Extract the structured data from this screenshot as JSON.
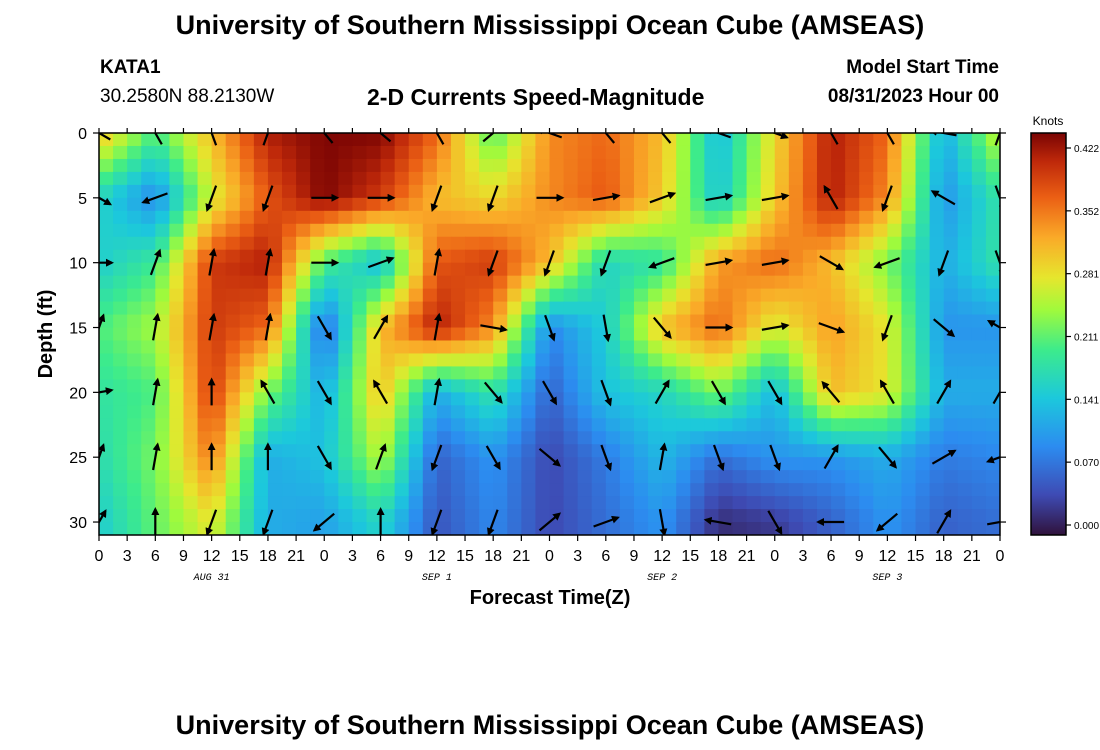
{
  "header": {
    "title": "University of Southern Mississippi Ocean Cube (AMSEAS)",
    "station_id": "KATA1",
    "coordinates": "30.2580N  88.2130W",
    "subtitle": "2-D Currents Speed-Magnitude",
    "model_start_label": "Model Start Time",
    "model_start_value": "08/31/2023 Hour 00"
  },
  "footer": {
    "title": "University of Southern Mississippi Ocean Cube (AMSEAS)"
  },
  "chart_data": {
    "type": "heatmap",
    "title": "2-D Currents Speed-Magnitude",
    "xlabel": "Forecast Time(Z)",
    "ylabel": "Depth (ft)",
    "x_tick_labels": [
      "0",
      "3",
      "6",
      "9",
      "12",
      "15",
      "18",
      "21",
      "0",
      "3",
      "6",
      "9",
      "12",
      "15",
      "18",
      "21",
      "0",
      "3",
      "6",
      "9",
      "12",
      "15",
      "18",
      "21",
      "0",
      "3",
      "6",
      "9",
      "12",
      "15",
      "18",
      "21",
      "0"
    ],
    "x_hours_range": [
      0,
      96
    ],
    "date_labels": [
      {
        "hour": 12,
        "text": "AUG 31"
      },
      {
        "hour": 36,
        "text": "SEP 1"
      },
      {
        "hour": 60,
        "text": "SEP 2"
      },
      {
        "hour": 84,
        "text": "SEP 3"
      }
    ],
    "y_ticks": [
      0,
      5,
      10,
      15,
      20,
      25,
      30
    ],
    "ylim": [
      0,
      31
    ],
    "y_inverted": true,
    "colorbar": {
      "label": "Knots",
      "ticks": [
        "0.422",
        "0.352",
        "0.281",
        "0.211",
        "0.141",
        "0.070",
        "0.000"
      ],
      "range": [
        0,
        0.422
      ]
    },
    "depth_rows_ft": [
      0,
      5,
      10,
      15,
      20,
      25,
      30
    ],
    "time_cols_hours": [
      0,
      6,
      12,
      18,
      24,
      30,
      36,
      42,
      48,
      54,
      60,
      66,
      72,
      78,
      84,
      90,
      96
    ],
    "speed_knots": [
      [
        0.3,
        0.2,
        0.3,
        0.4,
        0.42,
        0.42,
        0.35,
        0.2,
        0.33,
        0.35,
        0.3,
        0.13,
        0.28,
        0.4,
        0.35,
        0.12,
        0.26
      ],
      [
        0.16,
        0.09,
        0.26,
        0.36,
        0.42,
        0.38,
        0.3,
        0.28,
        0.33,
        0.36,
        0.29,
        0.14,
        0.29,
        0.4,
        0.33,
        0.1,
        0.18
      ],
      [
        0.15,
        0.19,
        0.38,
        0.4,
        0.2,
        0.13,
        0.36,
        0.38,
        0.3,
        0.16,
        0.18,
        0.32,
        0.35,
        0.3,
        0.22,
        0.12,
        0.18
      ],
      [
        0.2,
        0.24,
        0.38,
        0.35,
        0.06,
        0.3,
        0.4,
        0.33,
        0.09,
        0.15,
        0.3,
        0.35,
        0.26,
        0.32,
        0.27,
        0.1,
        0.1
      ],
      [
        0.18,
        0.2,
        0.38,
        0.22,
        0.12,
        0.3,
        0.12,
        0.18,
        0.06,
        0.14,
        0.16,
        0.22,
        0.13,
        0.3,
        0.27,
        0.12,
        0.12
      ],
      [
        0.17,
        0.22,
        0.34,
        0.12,
        0.14,
        0.25,
        0.06,
        0.1,
        0.04,
        0.08,
        0.13,
        0.07,
        0.1,
        0.1,
        0.12,
        0.08,
        0.09
      ],
      [
        0.15,
        0.21,
        0.27,
        0.12,
        0.11,
        0.16,
        0.05,
        0.09,
        0.04,
        0.07,
        0.1,
        0.02,
        0.03,
        0.06,
        0.1,
        0.06,
        0.07
      ]
    ],
    "current_vectors_deg": [
      [
        300,
        330,
        340,
        20,
        320,
        310,
        330,
        50,
        290,
        320,
        320,
        290,
        110,
        330,
        330,
        280,
        20
      ],
      [
        120,
        250,
        200,
        200,
        90,
        90,
        200,
        200,
        90,
        80,
        70,
        80,
        80,
        330,
        200,
        300,
        160
      ],
      [
        90,
        20,
        10,
        10,
        90,
        70,
        10,
        200,
        200,
        200,
        250,
        80,
        80,
        120,
        250,
        200,
        160
      ],
      [
        20,
        10,
        10,
        10,
        150,
        30,
        10,
        100,
        160,
        170,
        140,
        90,
        80,
        110,
        200,
        130,
        300
      ],
      [
        80,
        10,
        0,
        330,
        150,
        330,
        10,
        140,
        150,
        160,
        30,
        150,
        150,
        320,
        330,
        30,
        30
      ],
      [
        20,
        10,
        0,
        0,
        150,
        20,
        200,
        150,
        130,
        160,
        10,
        160,
        160,
        30,
        140,
        60,
        250
      ],
      [
        30,
        0,
        200,
        200,
        230,
        0,
        200,
        200,
        50,
        70,
        170,
        280,
        150,
        270,
        230,
        30,
        80
      ]
    ]
  }
}
